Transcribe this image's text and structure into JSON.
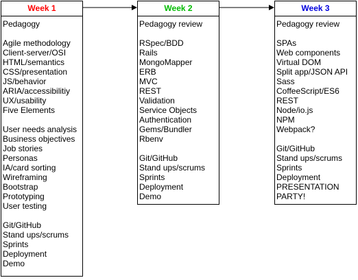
{
  "weeks": [
    {
      "title": "Week 1",
      "color": "#ff0000",
      "items": [
        "Pedagogy",
        "",
        "Agile methodology",
        "Client-server/OSI",
        "HTML/semantics",
        "CSS/presentation",
        "JS/behavior",
        "ARIA/accessibilitiy",
        "UX/usability",
        "Five Elements",
        "",
        "User needs analysis",
        "Business objectives",
        "Job stories",
        "Personas",
        "IA/card sorting",
        "Wireframing",
        "Bootstrap",
        "Prototyping",
        "User testing",
        "",
        "Git/GitHub",
        "Stand ups/scrums",
        "Sprints",
        "Deployment",
        "Demo"
      ]
    },
    {
      "title": "Week 2",
      "color": "#00bb00",
      "items": [
        "Pedagogy review",
        "",
        "RSpec/BDD",
        "Rails",
        "MongoMapper",
        "ERB",
        "MVC",
        "REST",
        "Validation",
        "Service Objects",
        "Authentication",
        "Gems/Bundler",
        "Rbenv",
        "",
        "Git/GitHub",
        "Stand ups/scrums",
        "Sprints",
        "Deployment",
        "Demo"
      ]
    },
    {
      "title": "Week 3",
      "color": "#0000dd",
      "items": [
        "Pedagogy review",
        "",
        "SPAs",
        "Web components",
        "Virtual DOM",
        "Split app/JSON API",
        "Sass",
        "CoffeeScript/ES6",
        "REST",
        "Node/io.js",
        "NPM",
        "Webpack?",
        "",
        "Git/GitHub",
        "Stand ups/scrums",
        "Sprints",
        "Deployment",
        "PRESENTATION",
        "PARTY!"
      ]
    }
  ]
}
